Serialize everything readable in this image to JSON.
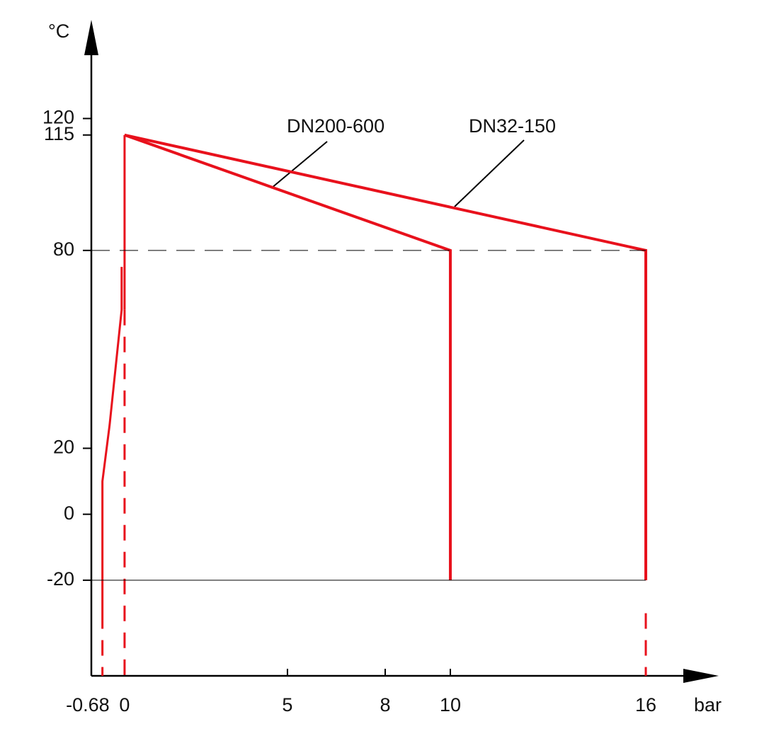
{
  "chart_data": {
    "type": "line",
    "xlabel": "bar",
    "ylabel": "°C",
    "xlim": [
      -1.02,
      18.13
    ],
    "ylim": [
      -49,
      149.5
    ],
    "xticks": [
      -0.68,
      0,
      5,
      8,
      10,
      16
    ],
    "yticks": [
      -20,
      0,
      20,
      80,
      115,
      120
    ],
    "grid": false,
    "series": [
      {
        "name": "DN200-600",
        "color": "#e8111c",
        "width": 4,
        "x": [
          0,
          10,
          10
        ],
        "values": [
          115,
          80,
          -20
        ]
      },
      {
        "name": "DN32-150",
        "color": "#e8111c",
        "width": 4,
        "x": [
          0,
          16,
          16
        ],
        "values": [
          115,
          80,
          -20
        ]
      },
      {
        "color": "#e8111c",
        "width": 3,
        "x": [
          0,
          0
        ],
        "values": [
          115,
          62
        ]
      },
      {
        "color": "#e8111c",
        "width": 3,
        "x": [
          -0.09,
          -0.09,
          -0.46,
          -0.68,
          -0.68
        ],
        "values": [
          75,
          62,
          27,
          10,
          -30
        ]
      },
      {
        "color": "#e8111c",
        "width": 3,
        "dash": true,
        "x": [
          0,
          0
        ],
        "values": [
          62,
          -49
        ]
      },
      {
        "color": "#e8111c",
        "width": 3,
        "dash": true,
        "x": [
          -0.68,
          -0.68
        ],
        "values": [
          -30,
          -49
        ]
      },
      {
        "color": "#e8111c",
        "width": 3,
        "dash": true,
        "x": [
          16,
          16
        ],
        "values": [
          -30,
          -49
        ]
      },
      {
        "color": "#000000",
        "width": 1,
        "dash": true,
        "x": [
          -1.02,
          16
        ],
        "values": [
          80,
          80
        ]
      },
      {
        "color": "#000000",
        "width": 1,
        "x": [
          -1.02,
          16
        ],
        "values": [
          -20,
          -20
        ]
      }
    ]
  }
}
